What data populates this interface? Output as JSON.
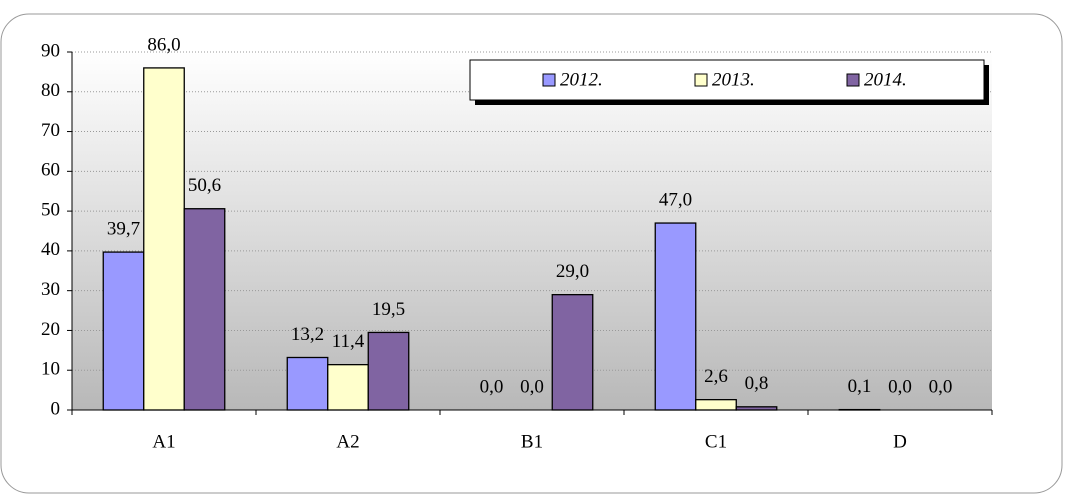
{
  "chart_data": {
    "type": "bar",
    "categories": [
      "A1",
      "A2",
      "B1",
      "C1",
      "D"
    ],
    "series": [
      {
        "name": "2012.",
        "color": "#9999ff",
        "values": [
          39.7,
          13.2,
          0.0,
          47.0,
          0.1
        ],
        "value_labels": [
          "39,7",
          "13,2",
          "0,0",
          "47,0",
          "0,1"
        ]
      },
      {
        "name": "2013.",
        "color": "#ffffcc",
        "values": [
          86.0,
          11.4,
          0.0,
          2.6,
          0.0
        ],
        "value_labels": [
          "86,0",
          "11,4",
          "0,0",
          "2,6",
          "0,0"
        ]
      },
      {
        "name": "2014.",
        "color": "#8064a2",
        "values": [
          50.6,
          19.5,
          29.0,
          0.8,
          0.0
        ],
        "value_labels": [
          "50,6",
          "19,5",
          "29,0",
          "0,8",
          "0,0"
        ]
      }
    ],
    "ylim": [
      0,
      90
    ],
    "yticks": [
      0,
      10,
      20,
      30,
      40,
      50,
      60,
      70,
      80,
      90
    ],
    "grid": true,
    "legend": "top-right"
  }
}
